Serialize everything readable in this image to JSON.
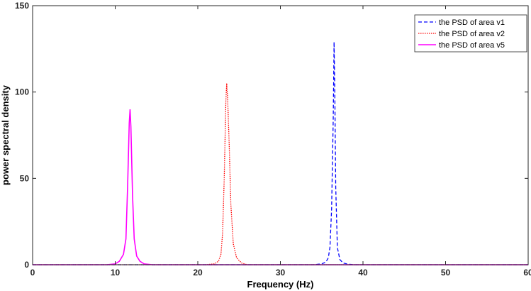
{
  "chart_data": {
    "type": "line",
    "title": "",
    "xlabel": "Frequency (Hz)",
    "ylabel": "power spectral density",
    "xlim": [
      0,
      60
    ],
    "ylim": [
      0,
      150
    ],
    "xticks": [
      "0",
      "10",
      "20",
      "30",
      "40",
      "50",
      "60"
    ],
    "yticks": [
      "0",
      "50",
      "100",
      "150"
    ],
    "grid": false,
    "legend_position": "top-right",
    "series": [
      {
        "name": "the PSD of area v1",
        "color": "#0000ff",
        "dash": "dashed",
        "x": [
          0,
          34,
          35,
          35.5,
          35.8,
          36,
          36.2,
          36.4,
          36.5,
          36.6,
          36.7,
          36.9,
          37.2,
          37.6,
          38.2,
          39,
          60
        ],
        "y": [
          0,
          0,
          0.5,
          1.5,
          4,
          10,
          32,
          85,
          129,
          95,
          45,
          10,
          3,
          1,
          0.3,
          0,
          0
        ]
      },
      {
        "name": "the PSD of area v2",
        "color": "#ff0000",
        "dash": "dotted",
        "x": [
          0,
          21,
          22,
          22.5,
          22.8,
          23,
          23.2,
          23.4,
          23.5,
          23.6,
          23.8,
          24,
          24.3,
          24.7,
          25.3,
          26,
          60
        ],
        "y": [
          0,
          0,
          0.5,
          2,
          6,
          18,
          50,
          95,
          105,
          98,
          70,
          35,
          12,
          4,
          1,
          0,
          0
        ]
      },
      {
        "name": "the PSD of area v5",
        "color": "#ff00ff",
        "dash": "solid",
        "x": [
          0,
          9,
          10,
          10.5,
          11,
          11.3,
          11.5,
          11.7,
          11.8,
          11.9,
          12.1,
          12.3,
          12.6,
          13,
          13.5,
          14.5,
          60
        ],
        "y": [
          0,
          0,
          0.5,
          2,
          6,
          15,
          45,
          82,
          90,
          80,
          40,
          15,
          5,
          2,
          0.5,
          0,
          0
        ]
      }
    ]
  }
}
